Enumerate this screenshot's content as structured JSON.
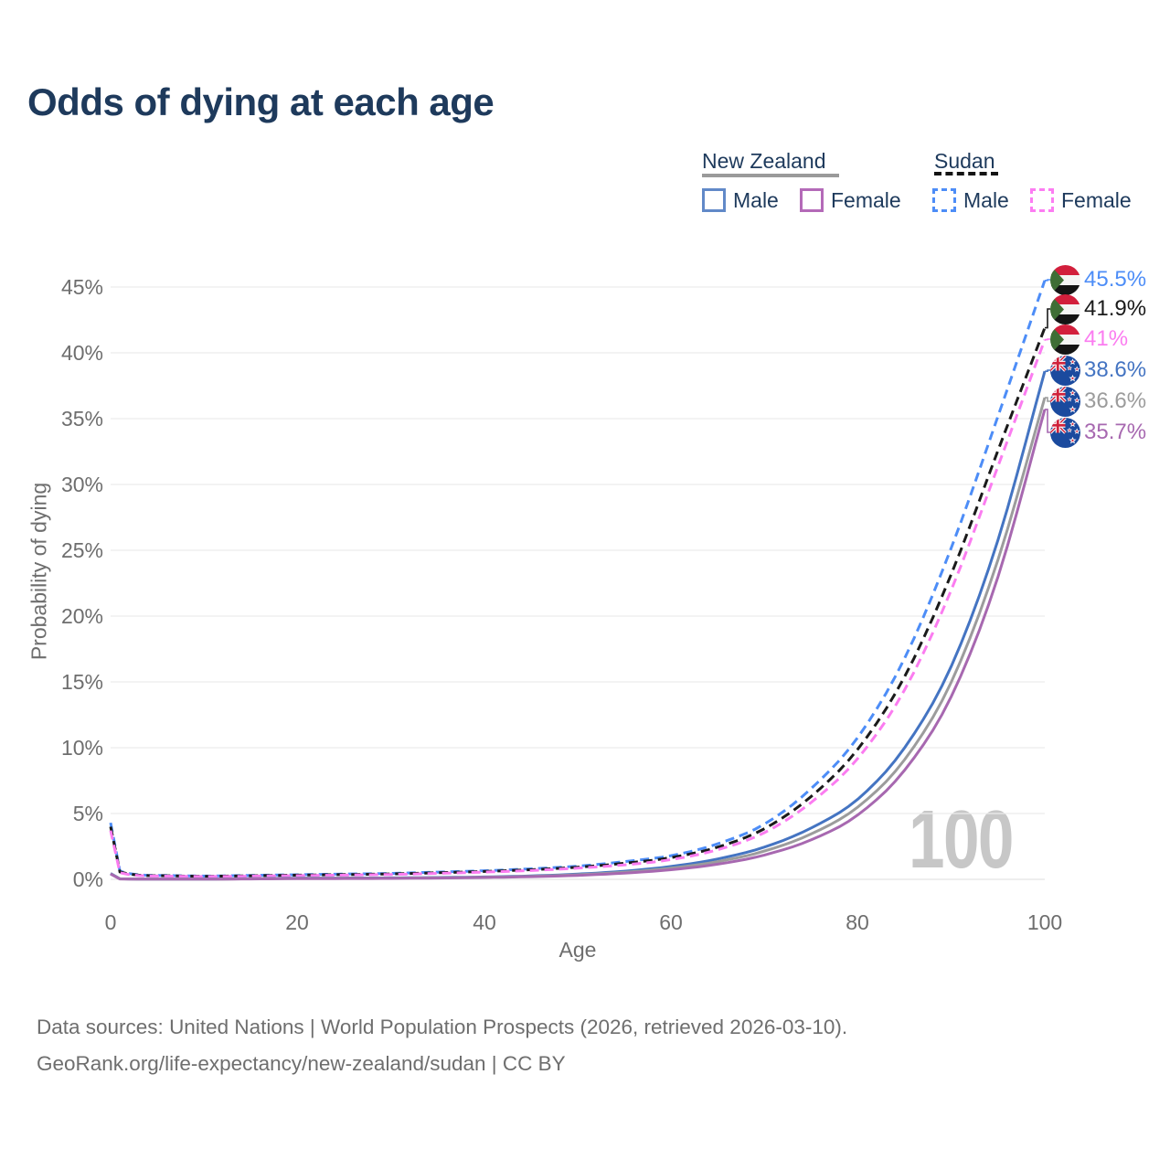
{
  "title": "Odds of dying at each age",
  "legend": {
    "groups": [
      {
        "country": "New Zealand",
        "line_style": "solid",
        "line_color": "#9a9a9a",
        "items": [
          {
            "label": "Male",
            "color": "#6189c8",
            "style": "solid"
          },
          {
            "label": "Female",
            "color": "#b46ab8",
            "style": "solid"
          }
        ]
      },
      {
        "country": "Sudan",
        "line_style": "dashed",
        "line_color": "#141414",
        "items": [
          {
            "label": "Male",
            "color": "#4d8df7",
            "style": "dashed"
          },
          {
            "label": "Female",
            "color": "#fc7df2",
            "style": "dashed"
          }
        ]
      }
    ]
  },
  "chart_data": {
    "type": "line",
    "title": "Odds of dying at each age",
    "xlabel": "Age",
    "ylabel": "Probability of dying",
    "xlim": [
      0,
      100
    ],
    "ylim_pct": [
      0,
      45
    ],
    "grid": true,
    "x_tick_values": [
      0,
      20,
      40,
      60,
      80,
      100
    ],
    "x_tick_labels": [
      "0",
      "20",
      "40",
      "60",
      "80",
      "100"
    ],
    "y_tick_values": [
      0,
      5,
      10,
      15,
      20,
      25,
      30,
      35,
      40,
      45
    ],
    "y_tick_labels": [
      "0%",
      "5%",
      "10%",
      "15%",
      "20%",
      "25%",
      "30%",
      "35%",
      "40%",
      "45%"
    ],
    "ages": [
      0,
      1,
      5,
      10,
      15,
      20,
      25,
      30,
      35,
      40,
      45,
      50,
      55,
      60,
      65,
      70,
      75,
      80,
      85,
      90,
      95,
      100
    ],
    "series": [
      {
        "name": "Sudan — Male",
        "style": "dashed",
        "color": "#4d8df7",
        "flag": "sudan",
        "end_label": "45.5%",
        "values_pct": [
          4.3,
          0.62,
          0.3,
          0.25,
          0.3,
          0.35,
          0.4,
          0.45,
          0.55,
          0.65,
          0.8,
          1.0,
          1.35,
          1.8,
          2.7,
          4.2,
          6.9,
          10.8,
          16.8,
          25.2,
          35.2,
          45.5
        ]
      },
      {
        "name": "Sudan",
        "style": "dashed",
        "color": "#1a1a1a",
        "flag": "sudan",
        "end_label": "41.9%",
        "values_pct": [
          4.0,
          0.56,
          0.28,
          0.23,
          0.27,
          0.32,
          0.36,
          0.41,
          0.5,
          0.6,
          0.73,
          0.92,
          1.22,
          1.65,
          2.45,
          3.85,
          6.3,
          9.9,
          15.4,
          23.2,
          32.6,
          41.9
        ]
      },
      {
        "name": "Sudan — Female",
        "style": "dashed",
        "color": "#fb7cf0",
        "flag": "sudan",
        "end_label": "41%",
        "values_pct": [
          3.7,
          0.5,
          0.25,
          0.21,
          0.24,
          0.28,
          0.32,
          0.37,
          0.45,
          0.55,
          0.67,
          0.85,
          1.1,
          1.5,
          2.25,
          3.55,
          5.85,
          9.2,
          14.4,
          22.0,
          31.4,
          41.0
        ]
      },
      {
        "name": "New Zealand — Male",
        "style": "solid",
        "color": "#4474c2",
        "flag": "new-zealand",
        "end_label": "38.6%",
        "values_pct": [
          0.45,
          0.04,
          0.02,
          0.02,
          0.05,
          0.09,
          0.1,
          0.11,
          0.14,
          0.18,
          0.26,
          0.4,
          0.62,
          0.98,
          1.55,
          2.45,
          3.9,
          6.1,
          10.0,
          16.2,
          25.8,
          38.6
        ]
      },
      {
        "name": "New Zealand",
        "style": "solid",
        "color": "#9c9c9c",
        "flag": "new-zealand",
        "end_label": "36.6%",
        "values_pct": [
          0.42,
          0.035,
          0.018,
          0.018,
          0.04,
          0.07,
          0.08,
          0.09,
          0.12,
          0.16,
          0.23,
          0.35,
          0.54,
          0.85,
          1.35,
          2.15,
          3.45,
          5.5,
          9.1,
          15.0,
          24.3,
          36.6
        ]
      },
      {
        "name": "New Zealand — Female",
        "style": "solid",
        "color": "#a768b0",
        "flag": "new-zealand",
        "end_label": "35.7%",
        "values_pct": [
          0.4,
          0.03,
          0.016,
          0.016,
          0.03,
          0.05,
          0.06,
          0.07,
          0.1,
          0.14,
          0.2,
          0.3,
          0.47,
          0.73,
          1.15,
          1.85,
          3.0,
          4.9,
          8.3,
          13.9,
          23.0,
          35.7
        ]
      }
    ],
    "watermark": "100",
    "legend_position": "top-right"
  },
  "footer": {
    "line1": "Data sources: United Nations | World Population Prospects (2026, retrieved 2026-03-10).",
    "line2": "GeoRank.org/life-expectancy/new-zealand/sudan | CC BY"
  }
}
